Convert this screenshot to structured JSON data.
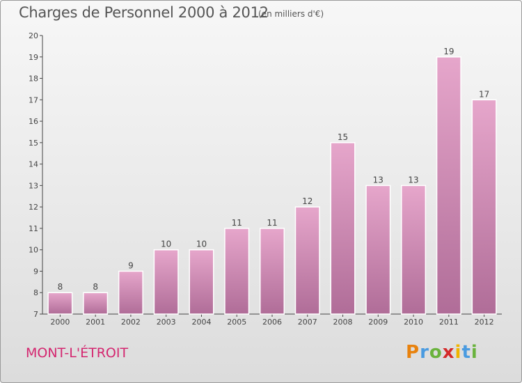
{
  "title": "Charges de Personnel 2000 à 2012",
  "subtitle": "(en milliers d'€)",
  "commune": "MONT-L'ÉTROIT",
  "logo": "Proxiti",
  "colors": {
    "bar_top": "#e6a6cb",
    "bar_bottom": "#b06d98",
    "commune_text": "#d4266f"
  },
  "chart_data": {
    "type": "bar",
    "title": "Charges de Personnel 2000 à 2012",
    "subtitle": "(en milliers d'€)",
    "categories": [
      "2000",
      "2001",
      "2002",
      "2003",
      "2004",
      "2005",
      "2006",
      "2007",
      "2008",
      "2009",
      "2010",
      "2011",
      "2012"
    ],
    "values": [
      8,
      8,
      9,
      10,
      10,
      11,
      11,
      12,
      15,
      13,
      13,
      19,
      17
    ],
    "ylim": [
      7,
      20
    ],
    "yticks": [
      7,
      8,
      9,
      10,
      11,
      12,
      13,
      14,
      15,
      16,
      17,
      18,
      19,
      20
    ],
    "xlabel": "",
    "ylabel": "",
    "grid": false,
    "data_labels": true
  }
}
